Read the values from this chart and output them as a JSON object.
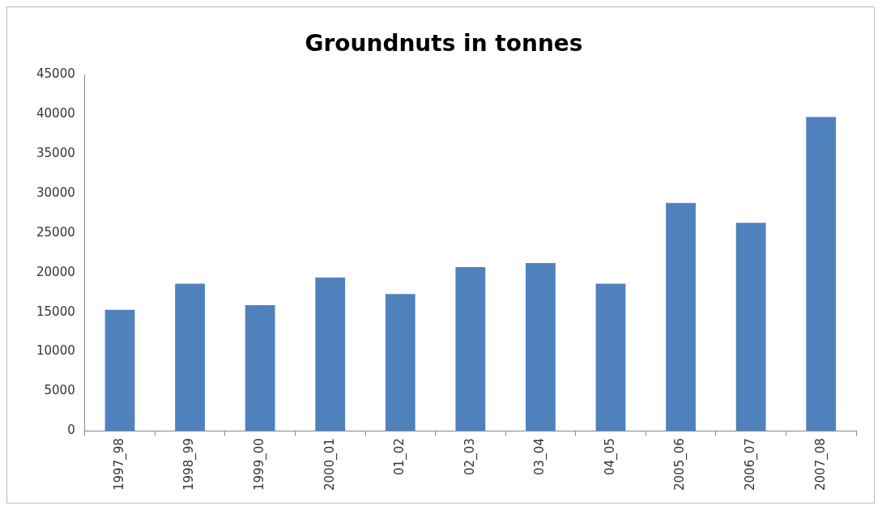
{
  "chart_data": {
    "type": "bar",
    "title": "Groundnuts in tonnes",
    "categories": [
      "1997_98",
      "1998_99",
      "1999_00",
      "2000_01",
      "01_02",
      "02_03",
      "03_04",
      "04_05",
      "2005_06",
      "2006_07",
      "2007_08"
    ],
    "values": [
      15300,
      18600,
      15900,
      19400,
      17300,
      20700,
      21200,
      18600,
      28800,
      26300,
      39700
    ],
    "color": "#4f81bd",
    "ylim": [
      0,
      45000
    ],
    "yticks": [
      0,
      5000,
      10000,
      15000,
      20000,
      25000,
      30000,
      35000,
      40000,
      45000
    ],
    "grid": false,
    "legend": false
  }
}
